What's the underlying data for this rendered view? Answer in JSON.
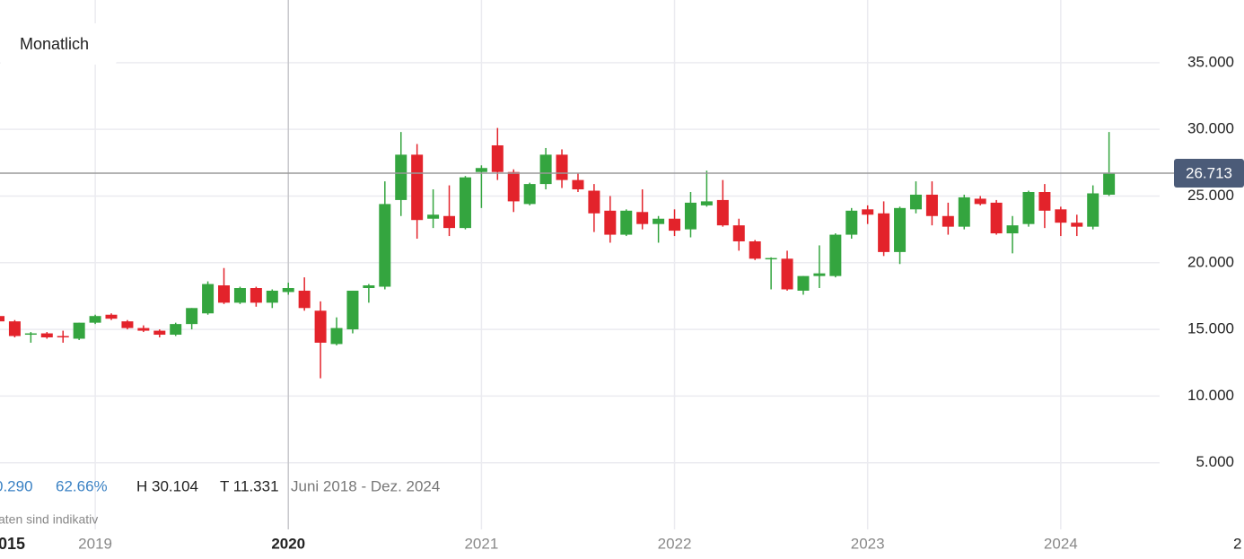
{
  "chart_data": {
    "type": "candlestick",
    "interval": "Monatlich",
    "x": [
      "2018-07",
      "2018-08",
      "2018-09",
      "2018-10",
      "2018-11",
      "2018-12",
      "2019-01",
      "2019-02",
      "2019-03",
      "2019-04",
      "2019-05",
      "2019-06",
      "2019-07",
      "2019-08",
      "2019-09",
      "2019-10",
      "2019-11",
      "2019-12",
      "2020-01",
      "2020-02",
      "2020-03",
      "2020-04",
      "2020-05",
      "2020-06",
      "2020-07",
      "2020-08",
      "2020-09",
      "2020-10",
      "2020-11",
      "2020-12",
      "2021-01",
      "2021-02",
      "2021-03",
      "2021-04",
      "2021-05",
      "2021-06",
      "2021-07",
      "2021-08",
      "2021-09",
      "2021-10",
      "2021-11",
      "2021-12",
      "2022-01",
      "2022-02",
      "2022-03",
      "2022-04",
      "2022-05",
      "2022-06",
      "2022-07",
      "2022-08",
      "2022-09",
      "2022-10",
      "2022-11",
      "2022-12",
      "2023-01",
      "2023-02",
      "2023-03",
      "2023-04",
      "2023-05",
      "2023-06",
      "2023-07",
      "2023-08",
      "2023-09",
      "2023-10",
      "2023-11",
      "2023-12",
      "2024-01",
      "2024-02",
      "2024-03",
      "2024-04"
    ],
    "open": [
      16000,
      15600,
      14600,
      14700,
      14500,
      14300,
      15500,
      16100,
      15600,
      15100,
      14900,
      14600,
      15400,
      16200,
      18300,
      17000,
      18100,
      17000,
      17800,
      17900,
      16400,
      13900,
      15000,
      18100,
      18200,
      24700,
      28100,
      23300,
      23500,
      22600,
      26800,
      28800,
      26800,
      24400,
      25900,
      28100,
      26200,
      25400,
      23900,
      22100,
      23800,
      22900,
      23300,
      22500,
      24300,
      24700,
      22800,
      21600,
      20300,
      20300,
      17900,
      19000,
      19000,
      22100,
      24000,
      23700,
      20800,
      24000,
      25100,
      23500,
      22700,
      24800,
      24500,
      22200,
      22900,
      25300,
      24000,
      23000,
      22700,
      25100
    ],
    "high": [
      16100,
      15700,
      14800,
      14800,
      14900,
      15500,
      16100,
      16200,
      15700,
      15300,
      15000,
      15500,
      16600,
      18600,
      19600,
      18200,
      18200,
      18000,
      18500,
      18900,
      17100,
      15900,
      17900,
      18400,
      26100,
      29800,
      28900,
      25500,
      25800,
      26500,
      27300,
      30104,
      27000,
      26000,
      28600,
      28500,
      26700,
      25900,
      25000,
      24000,
      25500,
      23500,
      24000,
      25300,
      26900,
      26200,
      23300,
      21700,
      20400,
      20900,
      19000,
      21300,
      22200,
      24100,
      24300,
      24600,
      24200,
      26100,
      26100,
      24500,
      25100,
      25000,
      24700,
      23500,
      25400,
      25900,
      24200,
      23600,
      25800,
      29800
    ],
    "low": [
      15500,
      14400,
      14000,
      14300,
      14000,
      14200,
      15400,
      15700,
      15000,
      14800,
      14400,
      14500,
      15000,
      16100,
      16900,
      16900,
      16700,
      16600,
      17600,
      16400,
      11331,
      13800,
      14700,
      17000,
      18000,
      23500,
      21800,
      22600,
      22000,
      22500,
      24100,
      26200,
      23800,
      24300,
      25500,
      25600,
      25300,
      22300,
      21500,
      22000,
      22500,
      21500,
      22000,
      21900,
      24200,
      22700,
      20900,
      20200,
      18000,
      17900,
      17600,
      18100,
      18900,
      21800,
      22900,
      20500,
      19900,
      23700,
      22800,
      22100,
      22500,
      24300,
      22100,
      20700,
      22700,
      22600,
      22000,
      22000,
      22500,
      25000
    ],
    "close": [
      15600,
      14500,
      14700,
      14400,
      14400,
      15500,
      16000,
      15800,
      15100,
      14900,
      14600,
      15400,
      16600,
      18400,
      17000,
      18100,
      17000,
      17900,
      18100,
      16600,
      14000,
      15100,
      17900,
      18300,
      24400,
      28100,
      23200,
      23600,
      22600,
      26400,
      27100,
      26800,
      24600,
      25900,
      28100,
      26200,
      25500,
      23700,
      22100,
      23900,
      22900,
      23300,
      22400,
      24500,
      24600,
      22800,
      21600,
      20300,
      20350,
      18000,
      19000,
      19200,
      22100,
      23900,
      23600,
      20800,
      24100,
      25100,
      23500,
      22700,
      24900,
      24400,
      22200,
      22800,
      25300,
      23900,
      23000,
      22700,
      25200,
      26713
    ],
    "up_color": "#34a53f",
    "down_color": "#e3232b",
    "xlim": [
      "2018-07",
      "2025-01"
    ],
    "xticks": [
      {
        "value": "2019-01",
        "label": "2019"
      },
      {
        "value": "2020-01",
        "label": "2020"
      },
      {
        "value": "2021-01",
        "label": "2021"
      },
      {
        "value": "2022-01",
        "label": "2022"
      },
      {
        "value": "2023-01",
        "label": "2023"
      },
      {
        "value": "2024-01",
        "label": "2024"
      },
      {
        "value": "2025-01",
        "label": "2"
      }
    ],
    "ylim": [
      0,
      39700
    ],
    "yticks": [
      {
        "value": 5000,
        "label": "5.000"
      },
      {
        "value": 10000,
        "label": "10.000"
      },
      {
        "value": 15000,
        "label": "15.000"
      },
      {
        "value": 20000,
        "label": "20.000"
      },
      {
        "value": 25000,
        "label": "25.000"
      },
      {
        "value": 30000,
        "label": "30.000"
      },
      {
        "value": 35000,
        "label": "35.000"
      }
    ],
    "grid": true,
    "last_price": {
      "value": 26713,
      "label": "26.713"
    },
    "cut_label": "015",
    "stats": {
      "change": "0.290",
      "change_pct": "62.66%",
      "high": "H 30.104",
      "low": "T 11.331",
      "period": "Juni 2018 - Dez. 2024"
    },
    "note": "aten sind indikativ"
  }
}
